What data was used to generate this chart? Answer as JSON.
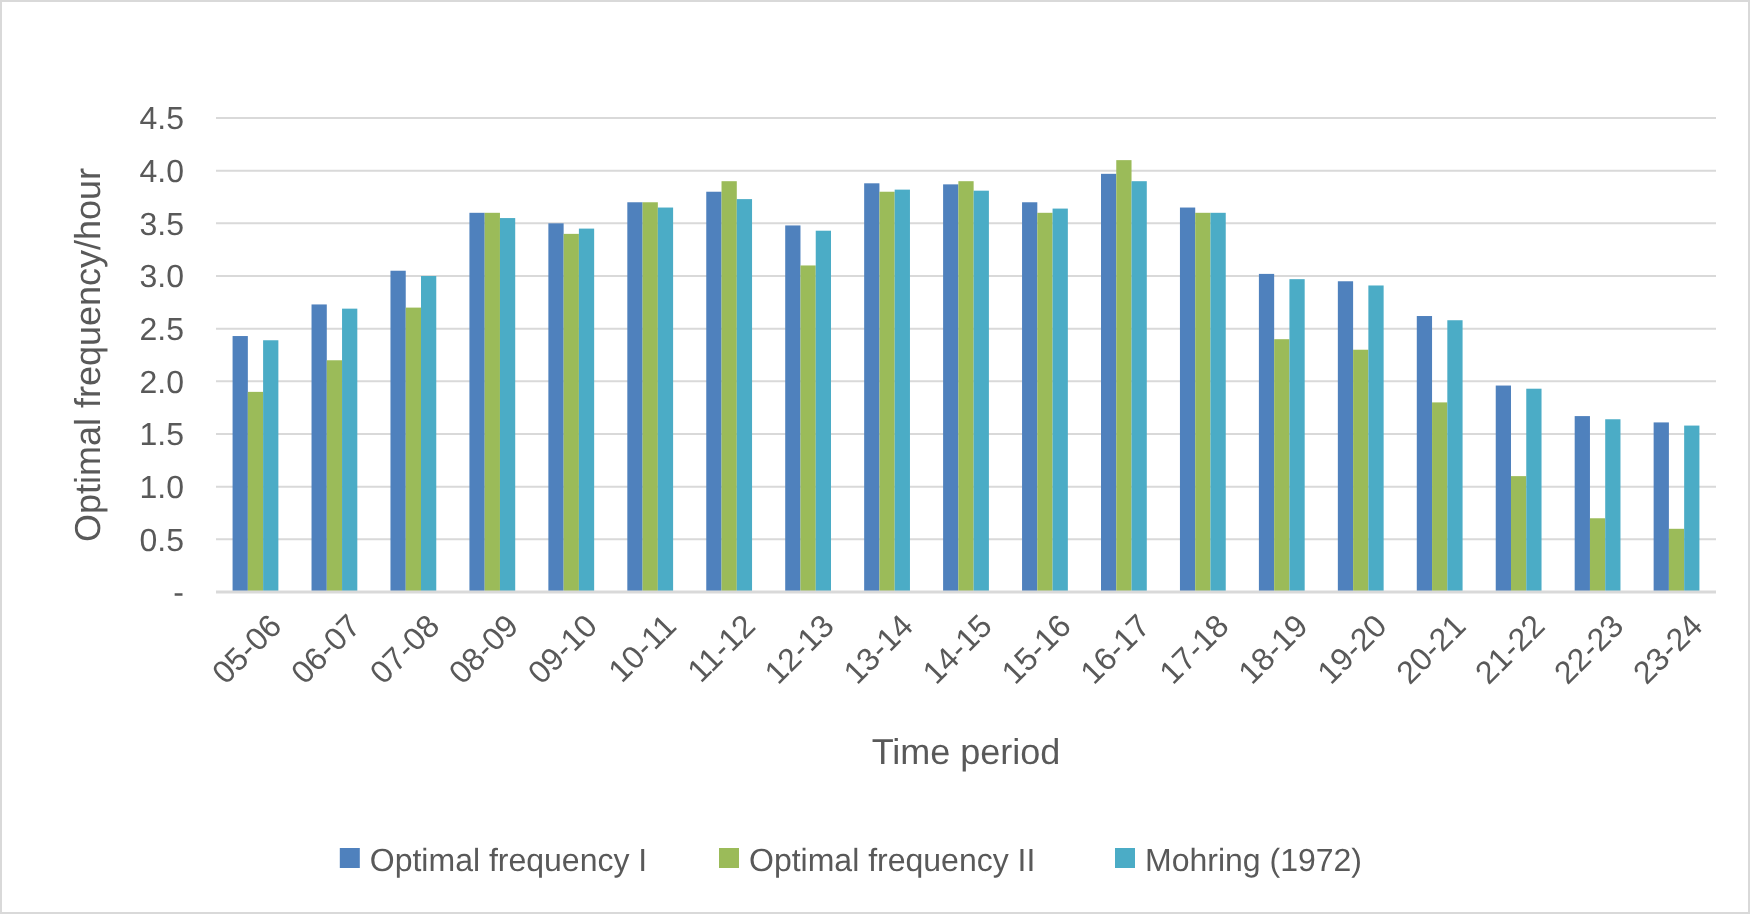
{
  "chart_data": {
    "type": "bar",
    "xlabel": "Time period",
    "ylabel": "Optimal frequency/hour",
    "categories": [
      "05-06",
      "06-07",
      "07-08",
      "08-09",
      "09-10",
      "10-11",
      "11-12",
      "12-13",
      "13-14",
      "14-15",
      "15-16",
      "16-17",
      "17-18",
      "18-19",
      "19-20",
      "20-21",
      "21-22",
      "22-23",
      "23-24"
    ],
    "series": [
      {
        "name": "Optimal frequency I",
        "color": "#4f81bd",
        "values": [
          2.43,
          2.73,
          3.05,
          3.6,
          3.5,
          3.7,
          3.8,
          3.48,
          3.88,
          3.87,
          3.7,
          3.97,
          3.65,
          3.02,
          2.95,
          2.62,
          1.96,
          1.67,
          1.61
        ]
      },
      {
        "name": "Optimal frequency II",
        "color": "#9bbb59",
        "values": [
          1.9,
          2.2,
          2.7,
          3.6,
          3.4,
          3.7,
          3.9,
          3.1,
          3.8,
          3.9,
          3.6,
          4.1,
          3.6,
          2.4,
          2.3,
          1.8,
          1.1,
          0.7,
          0.6
        ]
      },
      {
        "name": "Mohring (1972)",
        "color": "#4bacc6",
        "values": [
          2.39,
          2.69,
          3.0,
          3.55,
          3.45,
          3.65,
          3.73,
          3.43,
          3.82,
          3.81,
          3.64,
          3.9,
          3.6,
          2.97,
          2.91,
          2.58,
          1.93,
          1.64,
          1.58
        ]
      }
    ],
    "ylim": [
      0,
      4.5
    ],
    "yticks": [
      {
        "value": 0,
        "label": "-"
      },
      {
        "value": 0.5,
        "label": "0.5"
      },
      {
        "value": 1,
        "label": "1.0"
      },
      {
        "value": 1.5,
        "label": "1.5"
      },
      {
        "value": 2,
        "label": "2.0"
      },
      {
        "value": 2.5,
        "label": "2.5"
      },
      {
        "value": 3,
        "label": "3.0"
      },
      {
        "value": 3.5,
        "label": "3.5"
      },
      {
        "value": 4,
        "label": "4.0"
      },
      {
        "value": 4.5,
        "label": "4.5"
      }
    ],
    "grid": "y",
    "legend": "bottom"
  }
}
